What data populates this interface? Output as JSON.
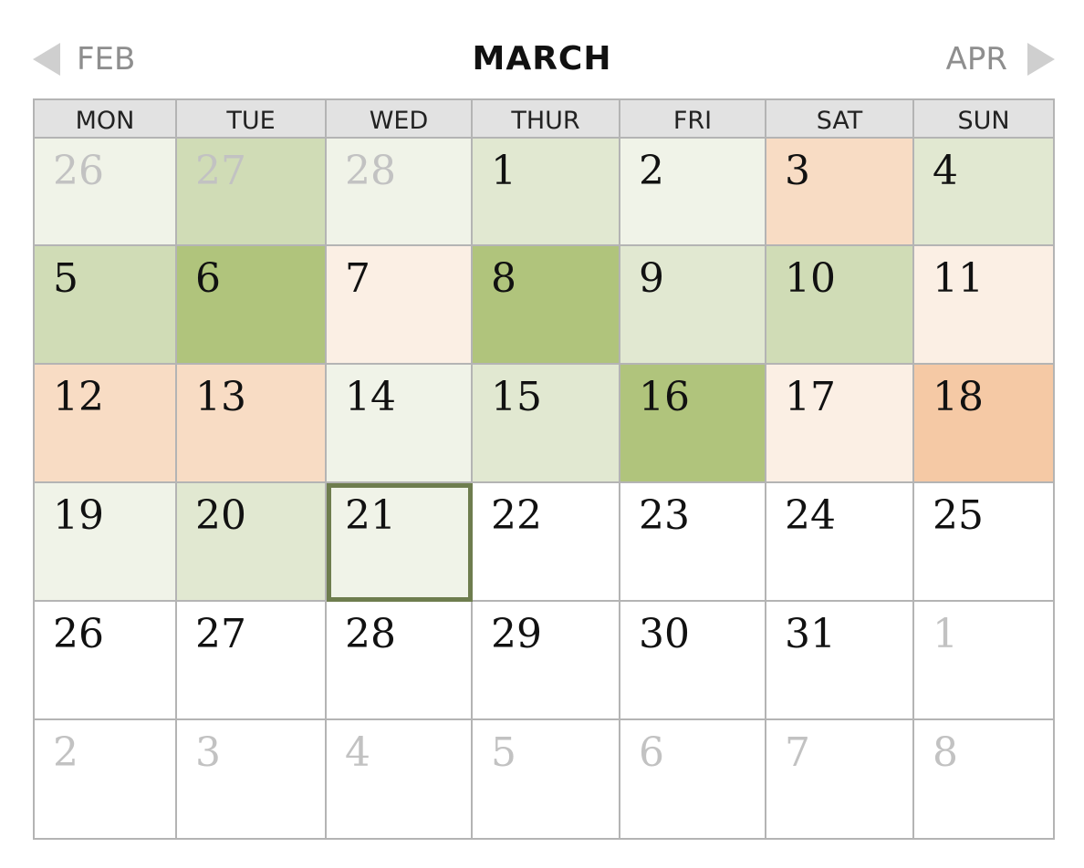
{
  "header": {
    "prev_label": "FEB",
    "title": "MARCH",
    "next_label": "APR",
    "prev_icon": "triangle-left-icon",
    "next_icon": "triangle-right-icon"
  },
  "weekdays": [
    "MON",
    "TUE",
    "WED",
    "THUR",
    "FRI",
    "SAT",
    "SUN"
  ],
  "colors": {
    "g1": "#f0f3e8",
    "g2": "#e1e8d1",
    "g3": "#d0dcb6",
    "g4": "#b0c47c",
    "o1": "#fbefe4",
    "o2": "#f8dcc4",
    "o3": "#f5c9a5",
    "w": "#ffffff",
    "today_border": "#6e7d4e"
  },
  "weeks": [
    [
      {
        "day": "26",
        "other": true,
        "shade": "g1"
      },
      {
        "day": "27",
        "other": true,
        "shade": "g3"
      },
      {
        "day": "28",
        "other": true,
        "shade": "g1"
      },
      {
        "day": "1",
        "other": false,
        "shade": "g2"
      },
      {
        "day": "2",
        "other": false,
        "shade": "g1"
      },
      {
        "day": "3",
        "other": false,
        "shade": "o2"
      },
      {
        "day": "4",
        "other": false,
        "shade": "g2"
      }
    ],
    [
      {
        "day": "5",
        "other": false,
        "shade": "g3"
      },
      {
        "day": "6",
        "other": false,
        "shade": "g4"
      },
      {
        "day": "7",
        "other": false,
        "shade": "o1"
      },
      {
        "day": "8",
        "other": false,
        "shade": "g4"
      },
      {
        "day": "9",
        "other": false,
        "shade": "g2"
      },
      {
        "day": "10",
        "other": false,
        "shade": "g3"
      },
      {
        "day": "11",
        "other": false,
        "shade": "o1"
      }
    ],
    [
      {
        "day": "12",
        "other": false,
        "shade": "o2"
      },
      {
        "day": "13",
        "other": false,
        "shade": "o2"
      },
      {
        "day": "14",
        "other": false,
        "shade": "g1"
      },
      {
        "day": "15",
        "other": false,
        "shade": "g2"
      },
      {
        "day": "16",
        "other": false,
        "shade": "g4"
      },
      {
        "day": "17",
        "other": false,
        "shade": "o1"
      },
      {
        "day": "18",
        "other": false,
        "shade": "o3"
      }
    ],
    [
      {
        "day": "19",
        "other": false,
        "shade": "g1"
      },
      {
        "day": "20",
        "other": false,
        "shade": "g2"
      },
      {
        "day": "21",
        "other": false,
        "shade": "g1",
        "today": true
      },
      {
        "day": "22",
        "other": false,
        "shade": "w"
      },
      {
        "day": "23",
        "other": false,
        "shade": "w"
      },
      {
        "day": "24",
        "other": false,
        "shade": "w"
      },
      {
        "day": "25",
        "other": false,
        "shade": "w"
      }
    ],
    [
      {
        "day": "26",
        "other": false,
        "shade": "w"
      },
      {
        "day": "27",
        "other": false,
        "shade": "w"
      },
      {
        "day": "28",
        "other": false,
        "shade": "w"
      },
      {
        "day": "29",
        "other": false,
        "shade": "w"
      },
      {
        "day": "30",
        "other": false,
        "shade": "w"
      },
      {
        "day": "31",
        "other": false,
        "shade": "w"
      },
      {
        "day": "1",
        "other": true,
        "shade": "w"
      }
    ],
    [
      {
        "day": "2",
        "other": true,
        "shade": "w"
      },
      {
        "day": "3",
        "other": true,
        "shade": "w"
      },
      {
        "day": "4",
        "other": true,
        "shade": "w"
      },
      {
        "day": "5",
        "other": true,
        "shade": "w"
      },
      {
        "day": "6",
        "other": true,
        "shade": "w"
      },
      {
        "day": "7",
        "other": true,
        "shade": "w"
      },
      {
        "day": "8",
        "other": true,
        "shade": "w"
      }
    ]
  ]
}
